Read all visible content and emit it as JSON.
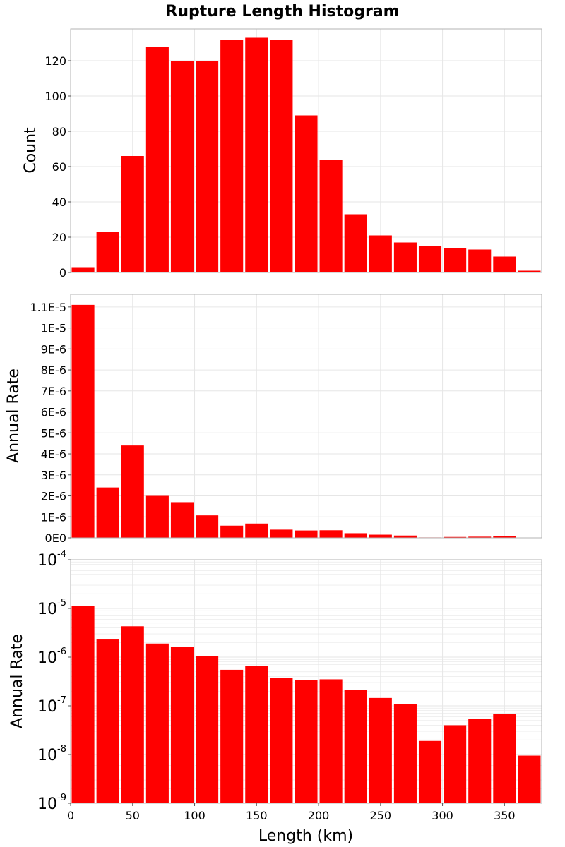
{
  "title": "Rupture Length Histogram",
  "xlabel": "Length (km)",
  "colors": {
    "bar": "#ff0000",
    "grid": "#e6e6e6",
    "frame": "#b3b3b3"
  },
  "chart_data": [
    {
      "type": "bar",
      "title": "Rupture Length Histogram",
      "ylabel": "Count",
      "yscale": "linear",
      "xlim": [
        0,
        380
      ],
      "ylim": [
        0,
        138
      ],
      "bin_width": 20,
      "categories": [
        10,
        30,
        50,
        70,
        90,
        110,
        130,
        150,
        170,
        190,
        210,
        230,
        250,
        270,
        290,
        310,
        330,
        350,
        370
      ],
      "values": [
        3,
        23,
        66,
        128,
        120,
        120,
        132,
        133,
        132,
        89,
        64,
        33,
        21,
        17,
        15,
        14,
        13,
        9,
        1
      ],
      "yticks": [
        0,
        20,
        40,
        60,
        80,
        100,
        120
      ],
      "ytick_labels": [
        "0",
        "20",
        "40",
        "60",
        "80",
        "100",
        "120"
      ],
      "grid": true
    },
    {
      "type": "bar",
      "ylabel": "Annual Rate",
      "yscale": "linear",
      "xlim": [
        0,
        380
      ],
      "ylim": [
        0,
        1.16e-05
      ],
      "bin_width": 20,
      "categories": [
        10,
        30,
        50,
        70,
        90,
        110,
        130,
        150,
        170,
        190,
        210,
        230,
        250,
        270,
        290,
        310,
        330,
        350,
        370
      ],
      "values": [
        1.11e-05,
        2.4e-06,
        4.4e-06,
        2e-06,
        1.7e-06,
        1.07e-06,
        5.8e-07,
        6.8e-07,
        3.9e-07,
        3.5e-07,
        3.6e-07,
        2.2e-07,
        1.5e-07,
        1.1e-07,
        2e-08,
        4.2e-08,
        5.5e-08,
        7e-08,
        1e-08
      ],
      "yticks": [
        0,
        1e-06,
        2e-06,
        3e-06,
        4e-06,
        5e-06,
        6e-06,
        7e-06,
        8e-06,
        9e-06,
        1e-05,
        1.1e-05
      ],
      "ytick_labels": [
        "0E0",
        "1E-6",
        "2E-6",
        "3E-6",
        "4E-6",
        "5E-6",
        "6E-6",
        "7E-6",
        "8E-6",
        "9E-6",
        "1E-5",
        "1.1E-5"
      ],
      "grid": true
    },
    {
      "type": "bar",
      "ylabel": "Annual Rate",
      "yscale": "log",
      "xlim": [
        0,
        380
      ],
      "ylim": [
        1e-09,
        0.0001
      ],
      "bin_width": 20,
      "categories": [
        10,
        30,
        50,
        70,
        90,
        110,
        130,
        150,
        170,
        190,
        210,
        230,
        250,
        270,
        290,
        310,
        330,
        350,
        370
      ],
      "values": [
        1.11e-05,
        2.3e-06,
        4.3e-06,
        1.9e-06,
        1.6e-06,
        1.05e-06,
        5.5e-07,
        6.5e-07,
        3.7e-07,
        3.4e-07,
        3.5e-07,
        2.1e-07,
        1.45e-07,
        1.1e-07,
        1.9e-08,
        4e-08,
        5.4e-08,
        6.8e-08,
        9.5e-09
      ],
      "yticks": [
        1e-09,
        1e-08,
        1e-07,
        1e-06,
        1e-05,
        0.0001
      ],
      "ytick_labels": [
        {
          "base": "10",
          "exp": "-9"
        },
        {
          "base": "10",
          "exp": "-8"
        },
        {
          "base": "10",
          "exp": "-7"
        },
        {
          "base": "10",
          "exp": "-6"
        },
        {
          "base": "10",
          "exp": "-5"
        },
        {
          "base": "10",
          "exp": "-4"
        }
      ],
      "xticks": [
        0,
        50,
        100,
        150,
        200,
        250,
        300,
        350
      ],
      "xtick_labels": [
        "0",
        "50",
        "100",
        "150",
        "200",
        "250",
        "300",
        "350"
      ],
      "xlabel": "Length (km)",
      "grid": true
    }
  ]
}
